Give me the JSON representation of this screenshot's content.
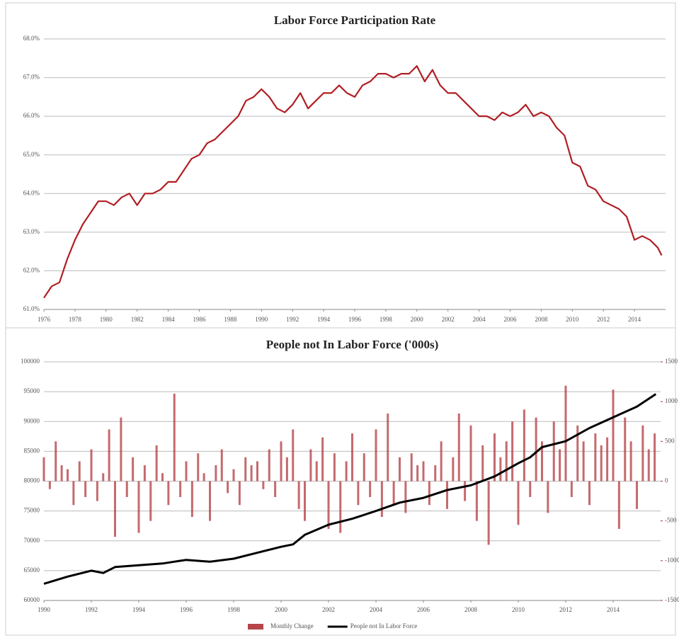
{
  "chart_data": [
    {
      "type": "line",
      "title": "Labor Force Participation Rate",
      "xlim": [
        1976,
        2016
      ],
      "xticks": [
        1976,
        1978,
        1980,
        1982,
        1984,
        1986,
        1988,
        1990,
        1992,
        1994,
        1996,
        1998,
        2000,
        2002,
        2004,
        2006,
        2008,
        2010,
        2012,
        2014
      ],
      "ylim": [
        61,
        68
      ],
      "yticks": [
        {
          "value": 61,
          "label": "61.0%"
        },
        {
          "value": 62,
          "label": "62.0%"
        },
        {
          "value": 63,
          "label": "63.0%"
        },
        {
          "value": 64,
          "label": "64.0%"
        },
        {
          "value": 65,
          "label": "65.0%"
        },
        {
          "value": 66,
          "label": "66.0%"
        },
        {
          "value": 67,
          "label": "67.0%"
        },
        {
          "value": 68,
          "label": "68.0%"
        }
      ],
      "grid": true,
      "series": [
        {
          "color": "#b01e23",
          "x": [
            1976,
            1976.5,
            1977,
            1977.5,
            1978,
            1978.5,
            1979,
            1979.5,
            1980,
            1980.5,
            1981,
            1981.5,
            1982,
            1982.5,
            1983,
            1983.5,
            1984,
            1984.5,
            1985,
            1985.5,
            1986,
            1986.5,
            1987,
            1987.5,
            1988,
            1988.5,
            1989,
            1989.5,
            1990,
            1990.5,
            1991,
            1991.5,
            1992,
            1992.5,
            1993,
            1993.5,
            1994,
            1994.5,
            1995,
            1995.5,
            1996,
            1996.5,
            1997,
            1997.5,
            1998,
            1998.5,
            1999,
            1999.5,
            2000,
            2000.5,
            2001,
            2001.5,
            2002,
            2002.5,
            2003,
            2003.5,
            2004,
            2004.5,
            2005,
            2005.5,
            2006,
            2006.5,
            2007,
            2007.5,
            2008,
            2008.5,
            2009,
            2009.5,
            2010,
            2010.5,
            2011,
            2011.5,
            2012,
            2012.5,
            2013,
            2013.5,
            2014,
            2014.5,
            2015,
            2015.5,
            2015.75
          ],
          "values": [
            61.3,
            61.6,
            61.7,
            62.3,
            62.8,
            63.2,
            63.5,
            63.8,
            63.8,
            63.7,
            63.9,
            64.0,
            63.7,
            64.0,
            64.0,
            64.1,
            64.3,
            64.3,
            64.6,
            64.9,
            65.0,
            65.3,
            65.4,
            65.6,
            65.8,
            66.0,
            66.4,
            66.5,
            66.7,
            66.5,
            66.2,
            66.1,
            66.3,
            66.6,
            66.2,
            66.4,
            66.6,
            66.6,
            66.8,
            66.6,
            66.5,
            66.8,
            66.9,
            67.1,
            67.1,
            67.0,
            67.1,
            67.1,
            67.3,
            66.9,
            67.2,
            66.8,
            66.6,
            66.6,
            66.4,
            66.2,
            66.0,
            66.0,
            65.9,
            66.1,
            66.0,
            66.1,
            66.3,
            66.0,
            66.1,
            66.0,
            65.7,
            65.5,
            64.8,
            64.7,
            64.2,
            64.1,
            63.8,
            63.7,
            63.6,
            63.4,
            62.8,
            62.9,
            62.8,
            62.6,
            62.4
          ]
        }
      ]
    },
    {
      "type": "combo",
      "title": "People not In Labor Force ('000s)",
      "xlim": [
        1990,
        2016
      ],
      "xticks": [
        1990,
        1992,
        1994,
        1996,
        1998,
        2000,
        2002,
        2004,
        2006,
        2008,
        2010,
        2012,
        2014
      ],
      "ylim": [
        60000,
        100000
      ],
      "yticks": [
        60000,
        65000,
        70000,
        75000,
        80000,
        85000,
        90000,
        95000,
        100000
      ],
      "y2lim": [
        -1500,
        1500
      ],
      "y2ticks": [
        -1500,
        -1000,
        -500,
        0,
        500,
        1000,
        1500
      ],
      "grid": true,
      "legend": "bottom",
      "series": [
        {
          "name": "Monthly Change",
          "color": "#b5454a",
          "axis": "y2",
          "kind": "bar",
          "x": [
            1990,
            1990.25,
            1990.5,
            1990.75,
            1991,
            1991.25,
            1991.5,
            1991.75,
            1992,
            1992.25,
            1992.5,
            1992.75,
            1993,
            1993.25,
            1993.5,
            1993.75,
            1994,
            1994.25,
            1994.5,
            1994.75,
            1995,
            1995.25,
            1995.5,
            1995.75,
            1996,
            1996.25,
            1996.5,
            1996.75,
            1997,
            1997.25,
            1997.5,
            1997.75,
            1998,
            1998.25,
            1998.5,
            1998.75,
            1999,
            1999.25,
            1999.5,
            1999.75,
            2000,
            2000.25,
            2000.5,
            2000.75,
            2001,
            2001.25,
            2001.5,
            2001.75,
            2002,
            2002.25,
            2002.5,
            2002.75,
            2003,
            2003.25,
            2003.5,
            2003.75,
            2004,
            2004.25,
            2004.5,
            2004.75,
            2005,
            2005.25,
            2005.5,
            2005.75,
            2006,
            2006.25,
            2006.5,
            2006.75,
            2007,
            2007.25,
            2007.5,
            2007.75,
            2008,
            2008.25,
            2008.5,
            2008.75,
            2009,
            2009.25,
            2009.5,
            2009.75,
            2010,
            2010.25,
            2010.5,
            2010.75,
            2011,
            2011.25,
            2011.5,
            2011.75,
            2012,
            2012.25,
            2012.5,
            2012.75,
            2013,
            2013.25,
            2013.5,
            2013.75,
            2014,
            2014.25,
            2014.5,
            2014.75,
            2015,
            2015.25,
            2015.5,
            2015.75
          ],
          "values": [
            300,
            -100,
            500,
            200,
            150,
            -300,
            250,
            -200,
            400,
            -250,
            100,
            650,
            -700,
            800,
            -200,
            300,
            -650,
            200,
            -500,
            450,
            100,
            -300,
            1100,
            -200,
            250,
            -450,
            350,
            100,
            -500,
            200,
            400,
            -150,
            150,
            -300,
            300,
            200,
            250,
            -100,
            400,
            -200,
            500,
            300,
            650,
            -350,
            -500,
            400,
            250,
            550,
            -600,
            350,
            -650,
            250,
            600,
            -300,
            350,
            -200,
            650,
            -450,
            850,
            -300,
            300,
            -400,
            350,
            200,
            250,
            -300,
            200,
            500,
            -350,
            300,
            850,
            -250,
            700,
            -500,
            450,
            -800,
            600,
            300,
            500,
            750,
            -550,
            900,
            -200,
            800,
            500,
            -400,
            750,
            400,
            1200,
            -200,
            700,
            500,
            -300,
            600,
            450,
            550,
            1150,
            -600,
            800,
            500,
            -350,
            700,
            400,
            600
          ]
        },
        {
          "name": "People not In Labor Force",
          "color": "#000000",
          "kind": "line",
          "x": [
            1990,
            1991,
            1992,
            1992.5,
            1993,
            1994,
            1995,
            1996,
            1997,
            1998,
            1999,
            2000,
            2000.5,
            2001,
            2002,
            2003,
            2004,
            2005,
            2006,
            2007,
            2008,
            2009,
            2010,
            2010.5,
            2011,
            2012,
            2013,
            2014,
            2015,
            2015.8
          ],
          "values": [
            62800,
            64000,
            65000,
            64600,
            65600,
            65900,
            66200,
            66800,
            66500,
            67000,
            68000,
            69000,
            69400,
            71000,
            72700,
            73700,
            75000,
            76400,
            77200,
            78500,
            79300,
            80800,
            83000,
            84000,
            85700,
            86700,
            88900,
            90700,
            92500,
            94600
          ]
        }
      ]
    }
  ]
}
